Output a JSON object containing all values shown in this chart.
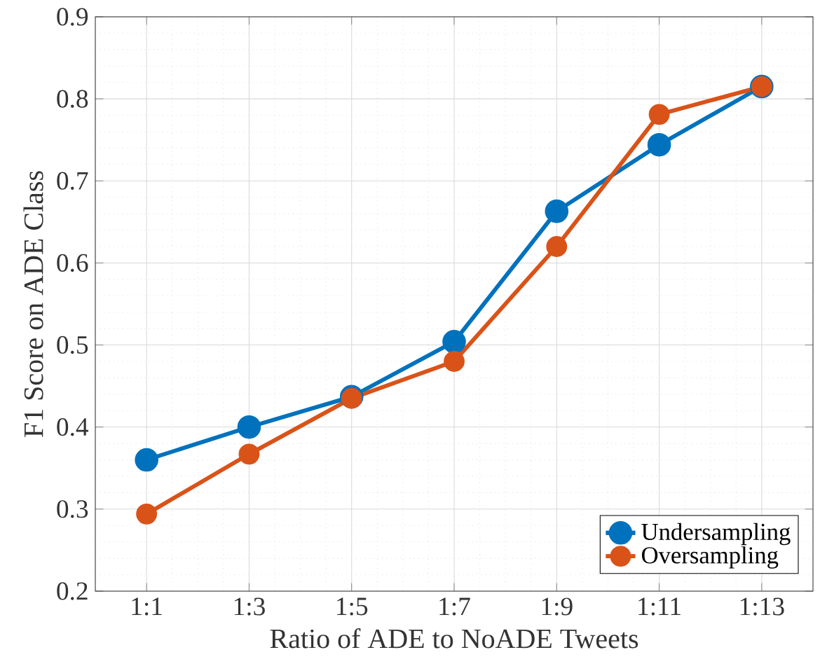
{
  "chart_data": {
    "type": "line",
    "xlabel": "Ratio of ADE to NoADE Tweets",
    "ylabel": "F1 Score on ADE Class",
    "categories": [
      "1:1",
      "1:3",
      "1:5",
      "1:7",
      "1:9",
      "1:11",
      "1:13"
    ],
    "series": [
      {
        "name": "Undersampling",
        "color": "#0072bd",
        "values": [
          0.36,
          0.4,
          0.437,
          0.504,
          0.663,
          0.744,
          0.815
        ]
      },
      {
        "name": "Oversampling",
        "color": "#d95319",
        "values": [
          0.294,
          0.367,
          0.435,
          0.48,
          0.62,
          0.781,
          0.815
        ]
      }
    ],
    "ylim": [
      0.2,
      0.9
    ],
    "yticks": [
      0.2,
      0.3,
      0.4,
      0.5,
      0.6,
      0.7,
      0.8,
      0.9
    ],
    "grid": true,
    "legend": "bottom right",
    "marker": "circle",
    "line_style": "solid"
  }
}
